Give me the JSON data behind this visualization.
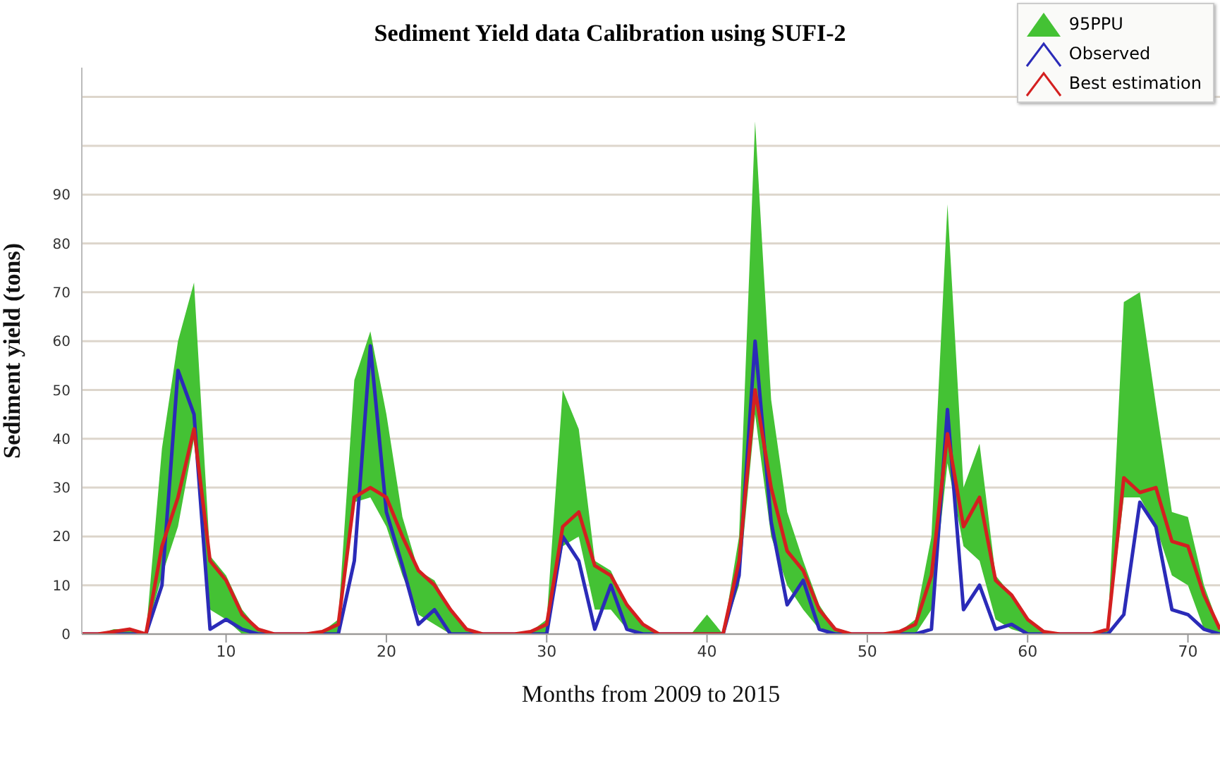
{
  "chart_data": {
    "type": "line",
    "title": "Sediment Yield data Calibration using SUFI-2",
    "xlabel": "Months from 2009 to 2015",
    "ylabel": "Sediment yield (tons)",
    "x": [
      1,
      2,
      3,
      4,
      5,
      6,
      7,
      8,
      9,
      10,
      11,
      12,
      13,
      14,
      15,
      16,
      17,
      18,
      19,
      20,
      21,
      22,
      23,
      24,
      25,
      26,
      27,
      28,
      29,
      30,
      31,
      32,
      33,
      34,
      35,
      36,
      37,
      38,
      39,
      40,
      41,
      42,
      43,
      44,
      45,
      46,
      47,
      48,
      49,
      50,
      51,
      52,
      53,
      54,
      55,
      56,
      57,
      58,
      59,
      60,
      61,
      62,
      63,
      64,
      65,
      66,
      67,
      68,
      69,
      70,
      71,
      72
    ],
    "series": [
      {
        "name": "95PPU",
        "type": "area",
        "color": "#44c234",
        "values": [
          null,
          null,
          null,
          null,
          null,
          null,
          null,
          null,
          null,
          null,
          null,
          null,
          null,
          null,
          null,
          null,
          null,
          null,
          null,
          null,
          null,
          null,
          null,
          null,
          null,
          null,
          null,
          null,
          null,
          null,
          null,
          null,
          null,
          null,
          null,
          null,
          null,
          null,
          null,
          null,
          null,
          null,
          null,
          null,
          null,
          null,
          null,
          null,
          null,
          null,
          null,
          null,
          null,
          null,
          null,
          null,
          null,
          null,
          null,
          null,
          null,
          null,
          null,
          null,
          null,
          null,
          null,
          null,
          null,
          null,
          null,
          null
        ],
        "lower": [
          0,
          0,
          0,
          0,
          0,
          12,
          22,
          40,
          5,
          3,
          0,
          0,
          0,
          0,
          0,
          0,
          0,
          27,
          28,
          22,
          12,
          4,
          2,
          0,
          0,
          0,
          0,
          0,
          0,
          0,
          18,
          20,
          5,
          5,
          1,
          0,
          0,
          0,
          0,
          0,
          0,
          10,
          45,
          20,
          10,
          5,
          1,
          0,
          0,
          0,
          0,
          0,
          0,
          5,
          35,
          18,
          15,
          3,
          1,
          0,
          0,
          0,
          0,
          0,
          0,
          28,
          28,
          22,
          12,
          10,
          1,
          0
        ],
        "upper": [
          0,
          0,
          1,
          1,
          0,
          38,
          60,
          72,
          16,
          12,
          5,
          1,
          0,
          0,
          0,
          0.5,
          3,
          52,
          62,
          45,
          24,
          13,
          11,
          5,
          1,
          0,
          0,
          0,
          0.5,
          3,
          50,
          42,
          15,
          13,
          6,
          2,
          0,
          0,
          0,
          4,
          0,
          20,
          105,
          48,
          25,
          15,
          6,
          1,
          0,
          0,
          0,
          0.5,
          3,
          20,
          88,
          30,
          39,
          12,
          8,
          3,
          0.5,
          0,
          0,
          0,
          1,
          68,
          70,
          47,
          25,
          24,
          10,
          1
        ]
      },
      {
        "name": "Observed",
        "type": "line",
        "color": "#2b2bb8",
        "values": [
          0,
          0,
          0,
          0,
          0,
          10,
          54,
          45,
          1,
          3,
          1,
          0,
          0,
          0,
          0,
          0,
          0,
          15,
          59,
          25,
          14,
          2,
          5,
          0,
          0,
          0,
          0,
          0,
          0,
          0,
          20,
          15,
          1,
          10,
          1,
          0,
          0,
          0,
          0,
          0,
          0,
          12,
          60,
          23,
          6,
          11,
          1,
          0,
          0,
          0,
          0,
          0,
          0,
          1,
          46,
          5,
          10,
          1,
          2,
          0,
          0,
          0,
          0,
          0,
          0,
          4,
          27,
          22,
          5,
          4,
          1,
          0
        ]
      },
      {
        "name": "Best estimation",
        "type": "line",
        "color": "#d42020",
        "values": [
          0,
          0,
          0.5,
          1,
          0,
          18,
          28,
          42,
          15,
          11,
          4,
          1,
          0,
          0,
          0,
          0.5,
          2,
          28,
          30,
          28,
          20,
          13,
          10,
          5,
          1,
          0,
          0,
          0,
          0.5,
          2,
          22,
          25,
          14,
          12,
          6,
          2,
          0,
          0,
          0,
          0,
          0,
          15,
          50,
          30,
          17,
          13,
          5,
          1,
          0,
          0,
          0,
          0.5,
          2,
          12,
          41,
          22,
          28,
          11,
          8,
          3,
          0.5,
          0,
          0,
          0,
          1,
          32,
          29,
          30,
          19,
          18,
          8,
          1
        ]
      }
    ],
    "xlim": [
      1,
      72
    ],
    "xticks": [
      10,
      20,
      30,
      40,
      50,
      60,
      70
    ],
    "ylim": [
      0,
      116
    ],
    "yticks": [
      0,
      10,
      20,
      30,
      40,
      50,
      60,
      70,
      80,
      90,
      {
        "value": 100,
        "label": null
      },
      {
        "value": 110,
        "label": null
      }
    ],
    "grid": "y",
    "legend": "top right",
    "marker": "none",
    "line_style": "solid"
  }
}
